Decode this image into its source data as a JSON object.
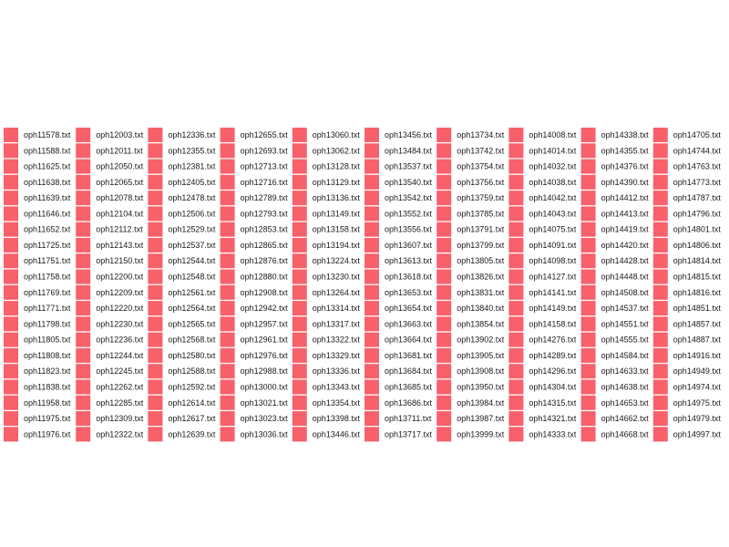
{
  "colors": {
    "swatch": "#f8606a",
    "text": "#1a1a1a",
    "background": "#ffffff"
  },
  "chart_data": {
    "type": "table",
    "title": "",
    "legend_only": true,
    "series": [
      [
        "oph11578.txt",
        "oph11588.txt",
        "oph11625.txt",
        "oph11638.txt",
        "oph11639.txt",
        "oph11646.txt",
        "oph11652.txt",
        "oph11725.txt",
        "oph11751.txt",
        "oph11758.txt",
        "oph11769.txt",
        "oph11771.txt",
        "oph11798.txt",
        "oph11805.txt",
        "oph11808.txt",
        "oph11823.txt",
        "oph11838.txt",
        "oph11958.txt",
        "oph11975.txt",
        "oph11976.txt"
      ],
      [
        "oph12003.txt",
        "oph12011.txt",
        "oph12050.txt",
        "oph12065.txt",
        "oph12078.txt",
        "oph12104.txt",
        "oph12112.txt",
        "oph12143.txt",
        "oph12150.txt",
        "oph12200.txt",
        "oph12209.txt",
        "oph12220.txt",
        "oph12230.txt",
        "oph12236.txt",
        "oph12244.txt",
        "oph12245.txt",
        "oph12262.txt",
        "oph12285.txt",
        "oph12309.txt",
        "oph12322.txt"
      ],
      [
        "oph12336.txt",
        "oph12355.txt",
        "oph12381.txt",
        "oph12405.txt",
        "oph12478.txt",
        "oph12506.txt",
        "oph12529.txt",
        "oph12537.txt",
        "oph12544.txt",
        "oph12548.txt",
        "oph12561.txt",
        "oph12564.txt",
        "oph12565.txt",
        "oph12568.txt",
        "oph12580.txt",
        "oph12588.txt",
        "oph12592.txt",
        "oph12614.txt",
        "oph12617.txt",
        "oph12639.txt"
      ],
      [
        "oph12655.txt",
        "oph12693.txt",
        "oph12713.txt",
        "oph12716.txt",
        "oph12789.txt",
        "oph12793.txt",
        "oph12853.txt",
        "oph12865.txt",
        "oph12876.txt",
        "oph12880.txt",
        "oph12908.txt",
        "oph12942.txt",
        "oph12957.txt",
        "oph12961.txt",
        "oph12976.txt",
        "oph12988.txt",
        "oph13000.txt",
        "oph13021.txt",
        "oph13023.txt",
        "oph13036.txt"
      ],
      [
        "oph13060.txt",
        "oph13062.txt",
        "oph13128.txt",
        "oph13129.txt",
        "oph13136.txt",
        "oph13149.txt",
        "oph13158.txt",
        "oph13194.txt",
        "oph13224.txt",
        "oph13230.txt",
        "oph13264.txt",
        "oph13314.txt",
        "oph13317.txt",
        "oph13322.txt",
        "oph13329.txt",
        "oph13336.txt",
        "oph13343.txt",
        "oph13354.txt",
        "oph13398.txt",
        "oph13446.txt"
      ],
      [
        "oph13456.txt",
        "oph13484.txt",
        "oph13537.txt",
        "oph13540.txt",
        "oph13542.txt",
        "oph13552.txt",
        "oph13556.txt",
        "oph13607.txt",
        "oph13613.txt",
        "oph13618.txt",
        "oph13653.txt",
        "oph13654.txt",
        "oph13663.txt",
        "oph13664.txt",
        "oph13681.txt",
        "oph13684.txt",
        "oph13685.txt",
        "oph13686.txt",
        "oph13711.txt",
        "oph13717.txt"
      ],
      [
        "oph13734.txt",
        "oph13742.txt",
        "oph13754.txt",
        "oph13756.txt",
        "oph13759.txt",
        "oph13785.txt",
        "oph13791.txt",
        "oph13799.txt",
        "oph13805.txt",
        "oph13826.txt",
        "oph13831.txt",
        "oph13840.txt",
        "oph13854.txt",
        "oph13902.txt",
        "oph13905.txt",
        "oph13908.txt",
        "oph13950.txt",
        "oph13984.txt",
        "oph13987.txt",
        "oph13999.txt"
      ],
      [
        "oph14008.txt",
        "oph14014.txt",
        "oph14032.txt",
        "oph14038.txt",
        "oph14042.txt",
        "oph14043.txt",
        "oph14075.txt",
        "oph14091.txt",
        "oph14098.txt",
        "oph14127.txt",
        "oph14141.txt",
        "oph14149.txt",
        "oph14158.txt",
        "oph14276.txt",
        "oph14289.txt",
        "oph14296.txt",
        "oph14304.txt",
        "oph14315.txt",
        "oph14321.txt",
        "oph14333.txt"
      ],
      [
        "oph14338.txt",
        "oph14355.txt",
        "oph14376.txt",
        "oph14390.txt",
        "oph14412.txt",
        "oph14413.txt",
        "oph14419.txt",
        "oph14420.txt",
        "oph14428.txt",
        "oph14448.txt",
        "oph14508.txt",
        "oph14537.txt",
        "oph14551.txt",
        "oph14555.txt",
        "oph14584.txt",
        "oph14633.txt",
        "oph14638.txt",
        "oph14653.txt",
        "oph14662.txt",
        "oph14668.txt"
      ],
      [
        "oph14705.txt",
        "oph14744.txt",
        "oph14763.txt",
        "oph14773.txt",
        "oph14787.txt",
        "oph14796.txt",
        "oph14801.txt",
        "oph14806.txt",
        "oph14814.txt",
        "oph14815.txt",
        "oph14816.txt",
        "oph14851.txt",
        "oph14857.txt",
        "oph14887.txt",
        "oph14916.txt",
        "oph14949.txt",
        "oph14974.txt",
        "oph14975.txt",
        "oph14979.txt",
        "oph14997.txt"
      ]
    ]
  }
}
